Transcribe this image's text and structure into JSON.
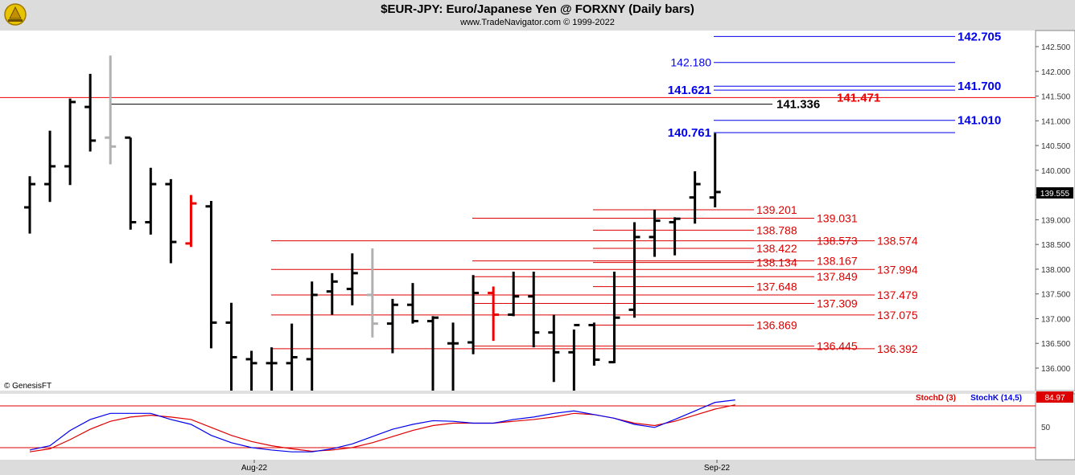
{
  "header": {
    "title": "$EUR-JPY:  Euro/Japanese Yen @ FORXNY  (Daily bars)",
    "subtitle": "www.TradeNavigator.com © 1999-2022"
  },
  "chart_data": {
    "type": "ohlc",
    "price_axis": {
      "ylim": [
        135.5,
        142.9
      ],
      "ticks": [
        "142.500",
        "142.000",
        "141.500",
        "141.000",
        "140.500",
        "140.000",
        "139.500",
        "139.000",
        "138.500",
        "138.000",
        "137.500",
        "137.000",
        "136.500",
        "136.000"
      ]
    },
    "last_price": "139.555",
    "bars": [
      {
        "o": 139.25,
        "h": 139.88,
        "l": 138.72,
        "c": 139.72,
        "col": "black"
      },
      {
        "o": 139.72,
        "h": 140.8,
        "l": 139.36,
        "c": 140.08,
        "col": "black"
      },
      {
        "o": 140.08,
        "h": 141.45,
        "l": 139.7,
        "c": 141.38,
        "col": "black"
      },
      {
        "o": 141.28,
        "h": 141.95,
        "l": 140.38,
        "c": 140.6,
        "col": "black"
      },
      {
        "o": 140.66,
        "h": 142.32,
        "l": 140.12,
        "c": 140.48,
        "col": "gray"
      },
      {
        "o": 140.66,
        "h": 140.66,
        "l": 138.8,
        "c": 138.95,
        "col": "black"
      },
      {
        "o": 138.95,
        "h": 140.05,
        "l": 138.7,
        "c": 139.72,
        "col": "black"
      },
      {
        "o": 139.72,
        "h": 139.82,
        "l": 138.12,
        "c": 138.55,
        "col": "black"
      },
      {
        "o": 138.52,
        "h": 139.5,
        "l": 138.45,
        "c": 139.33,
        "col": "red"
      },
      {
        "o": 139.27,
        "h": 139.38,
        "l": 136.4,
        "c": 136.92,
        "col": "black"
      },
      {
        "o": 136.92,
        "h": 137.32,
        "l": 135.5,
        "c": 136.22,
        "col": "black"
      },
      {
        "o": 136.18,
        "h": 136.35,
        "l": 135.5,
        "c": 136.1,
        "col": "black"
      },
      {
        "o": 136.1,
        "h": 136.42,
        "l": 135.5,
        "c": 136.1,
        "col": "black"
      },
      {
        "o": 136.1,
        "h": 136.9,
        "l": 135.5,
        "c": 136.22,
        "col": "black"
      },
      {
        "o": 136.18,
        "h": 137.75,
        "l": 135.5,
        "c": 137.48,
        "col": "black"
      },
      {
        "o": 137.55,
        "h": 137.92,
        "l": 137.08,
        "c": 137.75,
        "col": "black"
      },
      {
        "o": 137.6,
        "h": 138.32,
        "l": 137.27,
        "c": 137.92,
        "col": "black"
      },
      {
        "o": 137.48,
        "h": 138.42,
        "l": 136.62,
        "c": 136.9,
        "col": "gray"
      },
      {
        "o": 136.9,
        "h": 137.4,
        "l": 136.3,
        "c": 137.28,
        "col": "black"
      },
      {
        "o": 137.28,
        "h": 137.72,
        "l": 136.9,
        "c": 136.95,
        "col": "black"
      },
      {
        "o": 136.95,
        "h": 137.05,
        "l": 135.5,
        "c": 137.02,
        "col": "black"
      },
      {
        "o": 136.5,
        "h": 136.92,
        "l": 135.5,
        "c": 136.5,
        "col": "black"
      },
      {
        "o": 136.52,
        "h": 137.88,
        "l": 136.28,
        "c": 137.52,
        "col": "black"
      },
      {
        "o": 137.52,
        "h": 137.65,
        "l": 136.55,
        "c": 137.08,
        "col": "red"
      },
      {
        "o": 137.08,
        "h": 137.95,
        "l": 137.05,
        "c": 137.45,
        "col": "black"
      },
      {
        "o": 137.45,
        "h": 137.95,
        "l": 136.42,
        "c": 136.72,
        "col": "black"
      },
      {
        "o": 136.72,
        "h": 137.08,
        "l": 135.72,
        "c": 136.32,
        "col": "black"
      },
      {
        "o": 136.32,
        "h": 136.78,
        "l": 135.5,
        "c": 136.87,
        "col": "black"
      },
      {
        "o": 136.87,
        "h": 136.92,
        "l": 136.05,
        "c": 136.17,
        "col": "black"
      },
      {
        "o": 136.12,
        "h": 137.95,
        "l": 136.1,
        "c": 137.02,
        "col": "black"
      },
      {
        "o": 137.18,
        "h": 138.95,
        "l": 137.02,
        "c": 138.65,
        "col": "black"
      },
      {
        "o": 138.65,
        "h": 139.2,
        "l": 138.25,
        "c": 138.98,
        "col": "black"
      },
      {
        "o": 138.95,
        "h": 139.05,
        "l": 138.28,
        "c": 139.02,
        "col": "black"
      },
      {
        "o": 139.45,
        "h": 139.98,
        "l": 138.92,
        "c": 139.72,
        "col": "black"
      },
      {
        "o": 139.45,
        "h": 140.75,
        "l": 139.25,
        "c": 139.56,
        "col": "black"
      }
    ],
    "levels": [
      {
        "value": 142.705,
        "label": "142.705",
        "color": "#0000ee",
        "bold": true
      },
      {
        "value": 142.18,
        "label": "142.180",
        "color": "#0000ee",
        "bold": false
      },
      {
        "value": 141.621,
        "label": "141.621",
        "color": "#0000ee",
        "bold": true
      },
      {
        "value": 141.7,
        "label": "141.700",
        "color": "#0000ee",
        "bold": true
      },
      {
        "value": 141.01,
        "label": "141.010",
        "color": "#0000ee",
        "bold": true
      },
      {
        "value": 140.761,
        "label": "140.761",
        "color": "#0000ee",
        "bold": true
      },
      {
        "value": 141.471,
        "label": "141.471",
        "color": "#ee0000",
        "bold": true
      },
      {
        "value": 141.336,
        "label": "141.336",
        "color": "#000000",
        "bold": true
      },
      {
        "value": 139.201,
        "label": "139.201",
        "color": "#dd0000",
        "bold": false
      },
      {
        "value": 139.031,
        "label": "139.031",
        "color": "#dd0000",
        "bold": false
      },
      {
        "value": 138.788,
        "label": "138.788",
        "color": "#dd0000",
        "bold": false
      },
      {
        "value": 138.573,
        "label": "138.573",
        "color": "#dd0000",
        "bold": false
      },
      {
        "value": 138.574,
        "label": "138.574",
        "color": "#dd0000",
        "bold": false
      },
      {
        "value": 138.422,
        "label": "138.422",
        "color": "#dd0000",
        "bold": false
      },
      {
        "value": 138.167,
        "label": "138.167",
        "color": "#dd0000",
        "bold": false
      },
      {
        "value": 138.134,
        "label": "138.134",
        "color": "#dd0000",
        "bold": false
      },
      {
        "value": 137.994,
        "label": "137.994",
        "color": "#dd0000",
        "bold": false
      },
      {
        "value": 137.849,
        "label": "137.849",
        "color": "#dd0000",
        "bold": false
      },
      {
        "value": 137.648,
        "label": "137.648",
        "color": "#dd0000",
        "bold": false
      },
      {
        "value": 137.479,
        "label": "137.479",
        "color": "#dd0000",
        "bold": false
      },
      {
        "value": 137.309,
        "label": "137.309",
        "color": "#dd0000",
        "bold": false
      },
      {
        "value": 137.075,
        "label": "137.075",
        "color": "#dd0000",
        "bold": false
      },
      {
        "value": 136.869,
        "label": "136.869",
        "color": "#dd0000",
        "bold": false
      },
      {
        "value": 136.445,
        "label": "136.445",
        "color": "#dd0000",
        "bold": false
      },
      {
        "value": 136.392,
        "label": "136.392",
        "color": "#dd0000",
        "bold": false
      }
    ],
    "indicator": {
      "legend": [
        "StochD (3)",
        "StochK (14,5)"
      ],
      "legend_colors": [
        "#dd0000",
        "#0000ee"
      ],
      "last_value": "84.97",
      "axis_label": "50",
      "ylim": [
        0,
        100
      ],
      "stoch_k": [
        8,
        15,
        40,
        58,
        68,
        68,
        68,
        58,
        50,
        32,
        20,
        12,
        8,
        5,
        5,
        10,
        18,
        30,
        42,
        50,
        56,
        55,
        52,
        52,
        58,
        62,
        68,
        72,
        66,
        60,
        50,
        45,
        58,
        72,
        86,
        90
      ],
      "stoch_d": [
        5,
        10,
        25,
        42,
        55,
        62,
        65,
        62,
        58,
        45,
        32,
        22,
        15,
        10,
        6,
        8,
        12,
        20,
        30,
        40,
        48,
        52,
        52,
        52,
        55,
        58,
        62,
        68,
        66,
        60,
        52,
        48,
        55,
        65,
        75,
        82
      ]
    },
    "x_labels": [
      "Aug-22",
      "Sep-22"
    ],
    "copyright_note": "© GenesisFT"
  }
}
